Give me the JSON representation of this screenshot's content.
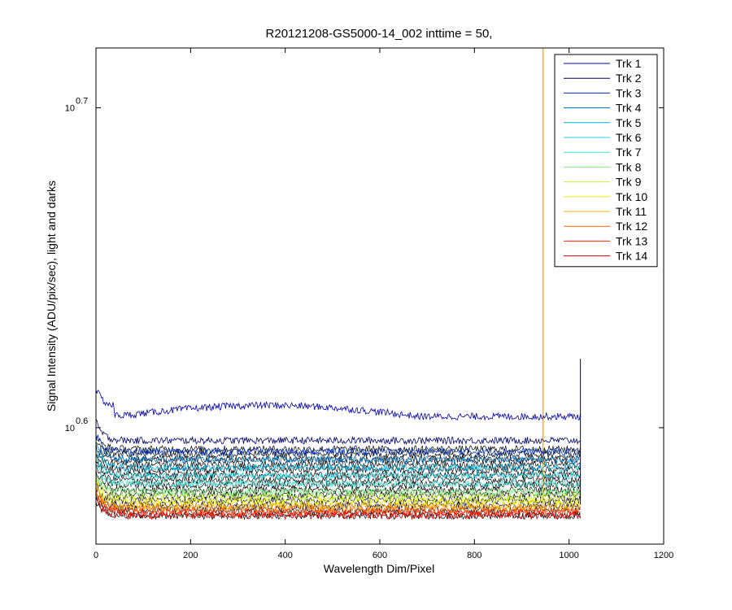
{
  "chart_data": {
    "type": "line",
    "title": "R20121208-GS5000-14_002 inttime = 50,",
    "xlabel": "Wavelength Dim/Pixel",
    "ylabel": "Signal Intensity (ADU/pix/sec), light and darks",
    "xlim": [
      0,
      1200
    ],
    "ylim_log10": [
      0.5636,
      0.7187
    ],
    "y_scale": "log",
    "x_ticks": [
      "0",
      "200",
      "400",
      "600",
      "800",
      "1000",
      "1200"
    ],
    "y_ticks": [
      {
        "exp": 0.6,
        "base": "10",
        "sup": "0.6"
      },
      {
        "exp": 0.7,
        "base": "10",
        "sup": "0.7"
      }
    ],
    "legend_position": "top-right",
    "grid": false,
    "n_pixels": 1024,
    "dark_level_log10": 0.5725,
    "dark_color": "#000000",
    "series": [
      {
        "name": "Trk 1",
        "color": "#0000b0",
        "level_log10": 0.6035,
        "hump": true
      },
      {
        "name": "Trk 2",
        "color": "#000070",
        "level_log10": 0.596
      },
      {
        "name": "Trk 3",
        "color": "#0030c0",
        "level_log10": 0.5925
      },
      {
        "name": "Trk 4",
        "color": "#0070c0",
        "level_log10": 0.59
      },
      {
        "name": "Trk 5",
        "color": "#00b0e0",
        "level_log10": 0.5875
      },
      {
        "name": "Trk 6",
        "color": "#20d0e0",
        "level_log10": 0.585
      },
      {
        "name": "Trk 7",
        "color": "#40e0d0",
        "level_log10": 0.5825
      },
      {
        "name": "Trk 8",
        "color": "#80f080",
        "level_log10": 0.58
      },
      {
        "name": "Trk 9",
        "color": "#c0f040",
        "level_log10": 0.5785
      },
      {
        "name": "Trk 10",
        "color": "#f0f000",
        "level_log10": 0.577
      },
      {
        "name": "Trk 11",
        "color": "#ffb000",
        "level_log10": 0.5755,
        "spike_x": 945
      },
      {
        "name": "Trk 12",
        "color": "#ff6000",
        "level_log10": 0.5745
      },
      {
        "name": "Trk 13",
        "color": "#ff2000",
        "level_log10": 0.5735
      },
      {
        "name": "Trk 14",
        "color": "#d00000",
        "level_log10": 0.5725
      }
    ]
  }
}
